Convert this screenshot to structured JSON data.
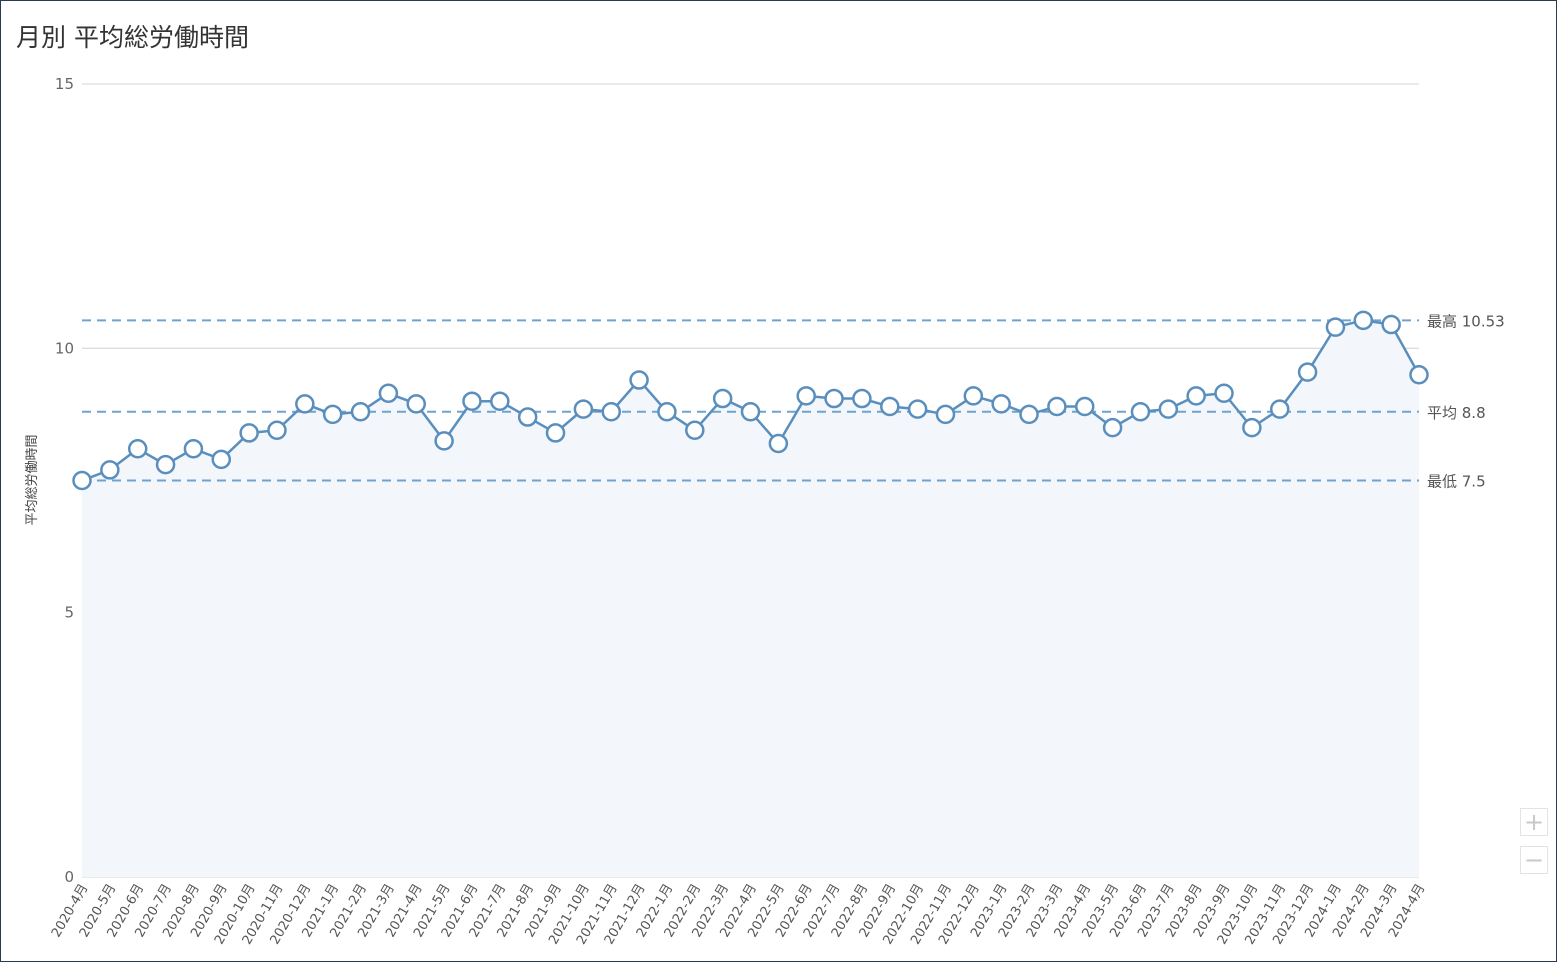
{
  "chart_data": {
    "type": "line",
    "title": "月別 平均総労働時間",
    "ylabel": "平均総労働時間",
    "ylim": [
      0,
      15
    ],
    "yticks": [
      "0",
      "5",
      "10",
      "15"
    ],
    "categories": [
      "2020-4月",
      "2020-5月",
      "2020-6月",
      "2020-7月",
      "2020-8月",
      "2020-9月",
      "2020-10月",
      "2020-11月",
      "2020-12月",
      "2021-1月",
      "2021-2月",
      "2021-3月",
      "2021-4月",
      "2021-5月",
      "2021-6月",
      "2021-7月",
      "2021-8月",
      "2021-9月",
      "2021-10月",
      "2021-11月",
      "2021-12月",
      "2022-1月",
      "2022-2月",
      "2022-3月",
      "2022-4月",
      "2022-5月",
      "2022-6月",
      "2022-7月",
      "2022-8月",
      "2022-9月",
      "2022-10月",
      "2022-11月",
      "2022-12月",
      "2023-1月",
      "2023-2月",
      "2023-3月",
      "2023-4月",
      "2023-5月",
      "2023-6月",
      "2023-7月",
      "2023-8月",
      "2023-9月",
      "2023-10月",
      "2023-11月",
      "2023-12月",
      "2024-1月",
      "2024-2月",
      "2024-3月",
      "2024-4月"
    ],
    "values": [
      7.5,
      7.7,
      8.1,
      7.8,
      8.1,
      7.9,
      8.4,
      8.45,
      8.95,
      8.75,
      8.8,
      9.15,
      8.95,
      8.25,
      9.0,
      9.0,
      8.7,
      8.4,
      8.85,
      8.8,
      9.4,
      8.8,
      8.45,
      9.05,
      8.8,
      8.2,
      9.1,
      9.05,
      9.05,
      8.9,
      8.85,
      8.75,
      9.1,
      8.95,
      8.75,
      8.9,
      8.9,
      8.5,
      8.8,
      8.85,
      9.1,
      9.15,
      8.5,
      8.85,
      9.55,
      10.4,
      10.53,
      10.45,
      9.5
    ],
    "reference_lines": [
      {
        "label": "最高 10.53",
        "value": 10.53
      },
      {
        "label": "平均 8.8",
        "value": 8.8
      },
      {
        "label": "最低 7.5",
        "value": 7.5
      }
    ],
    "grid": true,
    "legend": "none",
    "colors": {
      "line": "#5a8fbd",
      "area": "#f3f6fa",
      "reference": "#6fa3cf",
      "grid": "#dddddd"
    }
  },
  "controls": {
    "zoom_in": "+",
    "zoom_out": "−"
  }
}
